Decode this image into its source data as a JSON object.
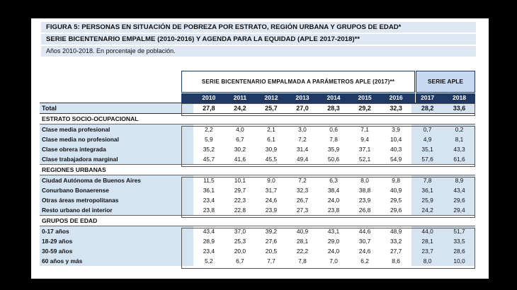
{
  "caption": {
    "line1": "FIGURA 5: PERSONAS EN SITUACIÓN DE POBREZA POR ESTRATO, REGIÓN URBANA Y GRUPOS DE EDAD*",
    "line2": "SERIE BICENTENARIO EMPALME (2010-2016) Y AGENDA PARA LA EQUIDAD (APLE 2017-2018)**",
    "line3": "Años 2010-2018. En porcentaje de población."
  },
  "headers": {
    "bicentenario": "SERIE BICENTENARIO EMPALMADA A PARÁMETROS APLE (2017)**",
    "aple": "SERIE APLE"
  },
  "years": [
    "2010",
    "2011",
    "2012",
    "2013",
    "2014",
    "2015",
    "2016",
    "2017",
    "2018"
  ],
  "total": {
    "label": "Total",
    "values": [
      "27,8",
      "24,2",
      "25,7",
      "27,0",
      "28,3",
      "29,2",
      "32,3",
      "28,2",
      "33,6"
    ]
  },
  "sections": [
    {
      "title": "ESTRATO SOCIO-OCUPACIONAL",
      "rows": [
        {
          "label": "Clase media profesional",
          "values": [
            "2,2",
            "4,0",
            "2,1",
            "3,0",
            "0,6",
            "7,1",
            "3,9",
            "0,7",
            "0,2"
          ]
        },
        {
          "label": "Clase media no profesional",
          "values": [
            "5,9",
            "6,7",
            "6,1",
            "7,2",
            "7,8",
            "9,4",
            "10,4",
            "4,9",
            "8,1"
          ]
        },
        {
          "label": "Clase obrera integrada",
          "values": [
            "35,2",
            "30,2",
            "30,9",
            "31,4",
            "35,9",
            "37,1",
            "40,3",
            "35,1",
            "43,3"
          ]
        },
        {
          "label": "Clase trabajadora marginal",
          "values": [
            "45,7",
            "41,6",
            "45,5",
            "49,4",
            "50,6",
            "52,1",
            "54,9",
            "57,6",
            "61,6"
          ]
        }
      ]
    },
    {
      "title": "REGIONES URBANAS",
      "rows": [
        {
          "label": "Ciudad Autónoma de Buenos Aires",
          "values": [
            "11,5",
            "10,1",
            "9,0",
            "7,2",
            "6,3",
            "8,0",
            "9,8",
            "7,8",
            "8,9"
          ]
        },
        {
          "label": "Conurbano Bonaerense",
          "values": [
            "36,1",
            "29,7",
            "31,7",
            "32,3",
            "38,4",
            "38,8",
            "40,9",
            "36,1",
            "43,4"
          ]
        },
        {
          "label": "Otras áreas metropolitanas",
          "values": [
            "23,4",
            "22,3",
            "24,6",
            "26,7",
            "24,0",
            "23,9",
            "29,5",
            "25,9",
            "29,6"
          ]
        },
        {
          "label": "Resto urbano del interior",
          "values": [
            "23,8",
            "22,8",
            "23,9",
            "27,3",
            "23,8",
            "26,8",
            "29,6",
            "24,2",
            "29,4"
          ]
        }
      ]
    },
    {
      "title": "GRUPOS DE EDAD",
      "rows": [
        {
          "label": "0-17 años",
          "values": [
            "43,4",
            "37,0",
            "39,2",
            "40,9",
            "43,1",
            "44,6",
            "48,9",
            "44,0",
            "51,7"
          ]
        },
        {
          "label": "18-29 años",
          "values": [
            "28,9",
            "25,3",
            "27,6",
            "28,1",
            "29,0",
            "30,7",
            "33,2",
            "28,1",
            "33,5"
          ]
        },
        {
          "label": "30-59 años",
          "values": [
            "23,4",
            "20,0",
            "20,5",
            "22,2",
            "24,0",
            "24,6",
            "27,7",
            "23,7",
            "28,6"
          ]
        },
        {
          "label": "60 años y más",
          "values": [
            "5,2",
            "6,7",
            "7,7",
            "7,8",
            "7,0",
            "6,2",
            "8,6",
            "8,0",
            "10,0"
          ]
        }
      ]
    }
  ]
}
